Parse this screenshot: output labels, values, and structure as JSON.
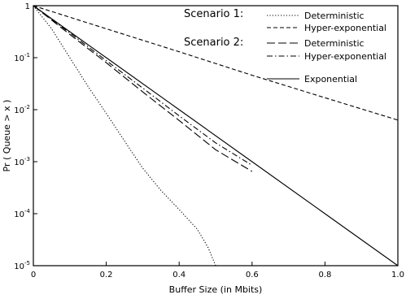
{
  "chart_data": {
    "type": "line",
    "xlabel": "Buffer Size (in Mbits)",
    "ylabel": "Pr ( Queue > x )",
    "xlim": [
      0,
      1.0
    ],
    "ylim": [
      1e-05,
      1
    ],
    "yscale": "log",
    "grid": false,
    "legend_position": "top-right",
    "x_ticks": [
      {
        "value": 0,
        "label": "0"
      },
      {
        "value": 0.2,
        "label": "0.2"
      },
      {
        "value": 0.4,
        "label": "0.4"
      },
      {
        "value": 0.6,
        "label": "0.6"
      },
      {
        "value": 0.8,
        "label": "0.8"
      },
      {
        "value": 1.0,
        "label": "1.0"
      }
    ],
    "y_ticks": [
      {
        "value": 1,
        "base": "1",
        "exp": ""
      },
      {
        "value": 0.1,
        "base": "10",
        "exp": "-1"
      },
      {
        "value": 0.01,
        "base": "10",
        "exp": "-2"
      },
      {
        "value": 0.001,
        "base": "10",
        "exp": "-3"
      },
      {
        "value": 0.0001,
        "base": "10",
        "exp": "-4"
      },
      {
        "value": 1e-05,
        "base": "10",
        "exp": "-5"
      }
    ],
    "legend_groups": [
      {
        "heading": "Scenario 1:",
        "entries": [
          {
            "series": "s1_det",
            "label": "Deterministic"
          },
          {
            "series": "s1_hyp",
            "label": "Hyper-exponential"
          }
        ]
      },
      {
        "heading": "Scenario 2:",
        "entries": [
          {
            "series": "s2_det",
            "label": "Deterministic"
          },
          {
            "series": "s2_hyp",
            "label": "Hyper-exponential"
          }
        ]
      },
      {
        "heading": "",
        "entries": [
          {
            "series": "exp",
            "label": "Exponential"
          }
        ]
      }
    ],
    "series": [
      {
        "id": "s1_det",
        "name": "Deterministic",
        "group": "Scenario 1",
        "style": "dotted",
        "x": [
          0,
          0.05,
          0.1,
          0.15,
          0.2,
          0.25,
          0.3,
          0.35,
          0.4,
          0.45,
          0.48,
          0.5
        ],
        "y": [
          1,
          0.36,
          0.1,
          0.028,
          0.0085,
          0.0025,
          0.00075,
          0.00028,
          0.00012,
          5e-05,
          2.2e-05,
          1e-05
        ]
      },
      {
        "id": "s1_hyp",
        "name": "Hyper-exponential",
        "group": "Scenario 1",
        "style": "dashed",
        "x": [
          0,
          0.2,
          0.4,
          0.6,
          0.8,
          1.0
        ],
        "y": [
          1,
          0.36,
          0.13,
          0.046,
          0.017,
          0.0063
        ]
      },
      {
        "id": "s2_det",
        "name": "Deterministic",
        "group": "Scenario 2",
        "style": "longdash",
        "x": [
          0,
          0.1,
          0.2,
          0.3,
          0.4,
          0.5,
          0.6
        ],
        "y": [
          1,
          0.28,
          0.08,
          0.022,
          0.0062,
          0.0017,
          0.00065
        ]
      },
      {
        "id": "s2_hyp",
        "name": "Hyper-exponential",
        "group": "Scenario 2",
        "style": "dashdot",
        "x": [
          0,
          0.1,
          0.2,
          0.3,
          0.4,
          0.5,
          0.6
        ],
        "y": [
          1,
          0.3,
          0.088,
          0.026,
          0.0076,
          0.0023,
          0.00085
        ]
      },
      {
        "id": "exp",
        "name": "Exponential",
        "group": "",
        "style": "solid",
        "x": [
          0,
          0.2,
          0.4,
          0.6,
          0.8,
          1.0
        ],
        "y": [
          1,
          0.1,
          0.01,
          0.001,
          0.0001,
          1e-05
        ]
      }
    ]
  }
}
